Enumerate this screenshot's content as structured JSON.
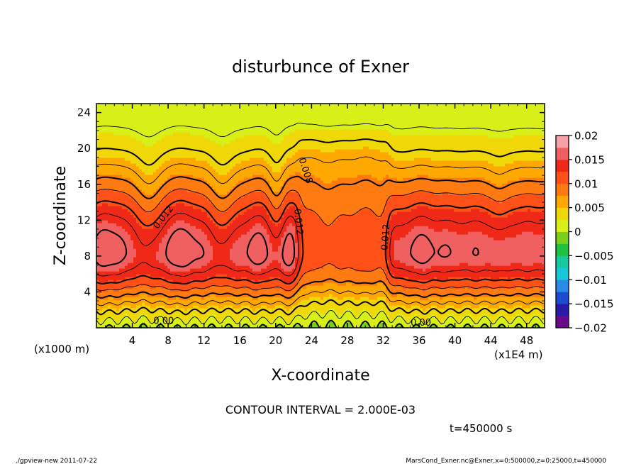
{
  "chart_data": {
    "type": "heatmap",
    "title": "disturbunce of Exner",
    "xlabel": "X-coordinate",
    "ylabel": "Z-coordinate",
    "x_unit_label": "(x1E4 m)",
    "z_unit_label": "(x1000 m)",
    "xlim": [
      0,
      50
    ],
    "ylim": [
      0,
      25
    ],
    "x_ticks": [
      4,
      8,
      12,
      16,
      20,
      24,
      28,
      32,
      36,
      40,
      44,
      48
    ],
    "y_ticks": [
      4,
      8,
      12,
      16,
      20,
      24
    ],
    "colorbar": {
      "min": -0.02,
      "max": 0.02,
      "step": 0.0025,
      "tick_labels": [
        "0.02",
        "0.015",
        "0.01",
        "0.005",
        "0",
        "−0.005",
        "−0.01",
        "−0.015",
        "−0.02"
      ],
      "tick_values": [
        0.02,
        0.015,
        0.01,
        0.005,
        0,
        -0.005,
        -0.01,
        -0.015,
        -0.02
      ],
      "colors": [
        "#6a0a8a",
        "#2a1aa8",
        "#1a4cd0",
        "#2a8ae8",
        "#18c8d8",
        "#18c8a0",
        "#20c040",
        "#7ad018",
        "#d8f018",
        "#f0d808",
        "#ffa800",
        "#ff7a10",
        "#ff5018",
        "#f02818",
        "#f06060",
        "#f8a0a8"
      ]
    },
    "contour_labels": [
      {
        "text": "0.012",
        "x": 7.5,
        "z": 12.3,
        "angle": -52
      },
      {
        "text": "0.008",
        "x": 23.3,
        "z": 17.5,
        "angle": 72
      },
      {
        "text": "0.012",
        "x": 22.5,
        "z": 11.8,
        "angle": 85
      },
      {
        "text": "0.012",
        "x": 32.3,
        "z": 10.1,
        "angle": -85
      },
      {
        "text": "0.00",
        "x": 7.5,
        "z": 0.7,
        "angle": 0
      },
      {
        "text": "0.00",
        "x": 36.2,
        "z": 0.5,
        "angle": 0
      }
    ]
  },
  "contour_interval": "CONTOUR INTERVAL = 2.000E-03",
  "time_label": "t=450000 s",
  "footer_left": "./gpview-new   2011-07-22",
  "footer_right": "MarsCond_Exner.nc@Exner,x=0:500000,z=0:25000,t=450000"
}
